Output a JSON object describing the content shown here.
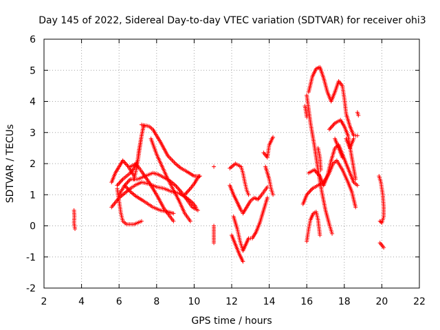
{
  "chart_data": {
    "type": "scatter",
    "title": "Day 145 of 2022, Sidereal Day-to-day VTEC variation (SDTVAR) for receiver ohi3",
    "xlabel": "GPS time / hours",
    "ylabel": "SDTVAR / TECUs",
    "xlim": [
      2,
      22
    ],
    "ylim": [
      -2,
      6
    ],
    "xticks": [
      "2",
      "4",
      "6",
      "8",
      "10",
      "12",
      "14",
      "16",
      "18",
      "20",
      "22"
    ],
    "yticks": [
      "-2",
      "-1",
      "0",
      "1",
      "2",
      "3",
      "4",
      "5",
      "6"
    ],
    "grid": true,
    "marker": "+",
    "series_color": "#ff0000",
    "tracks": [
      {
        "name": "t01",
        "points": [
          [
            3.6,
            0.5
          ],
          [
            3.62,
            0.3
          ],
          [
            3.6,
            0.1
          ],
          [
            3.65,
            -0.1
          ]
        ]
      },
      {
        "name": "t02",
        "points": [
          [
            5.6,
            1.4
          ],
          [
            5.8,
            1.7
          ],
          [
            6.0,
            1.9
          ],
          [
            6.2,
            2.1
          ],
          [
            6.5,
            1.9
          ],
          [
            6.8,
            1.6
          ]
        ]
      },
      {
        "name": "t03",
        "points": [
          [
            5.6,
            0.6
          ],
          [
            5.8,
            0.75
          ],
          [
            6.0,
            0.9
          ],
          [
            6.3,
            1.05
          ],
          [
            6.6,
            1.2
          ],
          [
            6.9,
            1.32
          ],
          [
            7.2,
            1.4
          ],
          [
            7.6,
            1.35
          ],
          [
            8.0,
            1.25
          ],
          [
            8.4,
            1.2
          ],
          [
            8.8,
            1.1
          ],
          [
            9.2,
            1.05
          ],
          [
            9.6,
            0.9
          ],
          [
            9.9,
            0.75
          ],
          [
            10.1,
            0.6
          ]
        ]
      },
      {
        "name": "t04",
        "points": [
          [
            5.9,
            1.2
          ],
          [
            6.0,
            0.8
          ],
          [
            6.1,
            0.4
          ],
          [
            6.2,
            0.15
          ],
          [
            6.4,
            0.05
          ],
          [
            6.8,
            0.05
          ],
          [
            7.2,
            0.15
          ]
        ]
      },
      {
        "name": "t05",
        "points": [
          [
            5.9,
            1.3
          ],
          [
            6.2,
            1.5
          ],
          [
            6.6,
            1.7
          ],
          [
            6.8,
            1.85
          ],
          [
            7.0,
            2.1
          ],
          [
            7.1,
            2.5
          ],
          [
            7.2,
            2.9
          ],
          [
            7.3,
            3.2
          ]
        ]
      },
      {
        "name": "t06",
        "points": [
          [
            6.8,
            1.5
          ],
          [
            6.95,
            1.9
          ],
          [
            7.05,
            2.4
          ],
          [
            7.2,
            2.9
          ],
          [
            7.3,
            3.2
          ]
        ]
      },
      {
        "name": "t07",
        "points": [
          [
            7.2,
            3.25
          ],
          [
            7.6,
            3.2
          ],
          [
            7.8,
            3.1
          ],
          [
            8.2,
            2.7
          ],
          [
            8.6,
            2.25
          ],
          [
            9.0,
            2.0
          ],
          [
            9.3,
            1.85
          ],
          [
            9.6,
            1.75
          ],
          [
            10.0,
            1.6
          ],
          [
            10.3,
            1.6
          ]
        ]
      },
      {
        "name": "t08",
        "points": [
          [
            6.0,
            1.0
          ],
          [
            6.3,
            1.3
          ],
          [
            6.6,
            1.5
          ],
          [
            7.0,
            1.5
          ],
          [
            7.4,
            1.6
          ],
          [
            7.8,
            1.7
          ],
          [
            8.1,
            1.65
          ],
          [
            8.4,
            1.55
          ],
          [
            8.7,
            1.45
          ],
          [
            9.0,
            1.3
          ],
          [
            9.3,
            1.1
          ],
          [
            9.6,
            0.85
          ],
          [
            9.9,
            0.6
          ],
          [
            10.2,
            0.5
          ]
        ]
      },
      {
        "name": "t09",
        "points": [
          [
            6.6,
            1.9
          ],
          [
            6.9,
            2.0
          ],
          [
            7.2,
            1.75
          ],
          [
            7.6,
            1.4
          ],
          [
            8.0,
            1.0
          ],
          [
            8.4,
            0.55
          ],
          [
            8.9,
            0.15
          ]
        ]
      },
      {
        "name": "t10",
        "points": [
          [
            6.3,
            1.3
          ],
          [
            6.6,
            1.1
          ],
          [
            6.9,
            0.95
          ],
          [
            7.3,
            0.8
          ],
          [
            7.8,
            0.6
          ],
          [
            8.2,
            0.5
          ],
          [
            8.6,
            0.45
          ],
          [
            8.9,
            0.4
          ]
        ]
      },
      {
        "name": "t11",
        "points": [
          [
            7.7,
            2.8
          ],
          [
            8.0,
            2.3
          ],
          [
            8.3,
            1.9
          ],
          [
            8.6,
            1.5
          ],
          [
            8.9,
            1.15
          ],
          [
            9.2,
            0.8
          ],
          [
            9.5,
            0.4
          ],
          [
            9.8,
            0.15
          ]
        ]
      },
      {
        "name": "t12",
        "points": [
          [
            9.5,
            1.0
          ],
          [
            9.8,
            1.2
          ],
          [
            10.0,
            1.35
          ],
          [
            10.2,
            1.55
          ],
          [
            10.3,
            1.6
          ]
        ]
      },
      {
        "name": "t13",
        "points": [
          [
            11.05,
            1.9
          ]
        ]
      },
      {
        "name": "t14",
        "points": [
          [
            11.05,
            0.0
          ],
          [
            11.05,
            -0.55
          ]
        ]
      },
      {
        "name": "t15",
        "points": [
          [
            11.9,
            1.85
          ],
          [
            12.2,
            2.0
          ],
          [
            12.5,
            1.9
          ],
          [
            12.6,
            1.7
          ],
          [
            12.7,
            1.4
          ],
          [
            12.8,
            1.15
          ],
          [
            12.9,
            1.0
          ]
        ]
      },
      {
        "name": "t16",
        "points": [
          [
            11.9,
            1.3
          ],
          [
            12.1,
            1.0
          ],
          [
            12.3,
            0.75
          ],
          [
            12.5,
            0.5
          ],
          [
            12.6,
            0.4
          ],
          [
            12.8,
            0.6
          ],
          [
            13.0,
            0.8
          ],
          [
            13.2,
            0.9
          ],
          [
            13.4,
            0.85
          ],
          [
            13.6,
            1.0
          ],
          [
            13.9,
            1.25
          ]
        ]
      },
      {
        "name": "t17",
        "points": [
          [
            12.1,
            0.3
          ],
          [
            12.3,
            -0.1
          ],
          [
            12.45,
            -0.5
          ],
          [
            12.6,
            -0.8
          ],
          [
            12.75,
            -0.6
          ],
          [
            12.9,
            -0.4
          ],
          [
            13.1,
            -0.4
          ],
          [
            13.3,
            -0.2
          ],
          [
            13.5,
            0.1
          ],
          [
            13.7,
            0.5
          ],
          [
            13.9,
            0.9
          ]
        ]
      },
      {
        "name": "t18",
        "points": [
          [
            12.0,
            -0.3
          ],
          [
            12.2,
            -0.6
          ],
          [
            12.4,
            -0.9
          ],
          [
            12.6,
            -1.15
          ]
        ]
      },
      {
        "name": "t19",
        "points": [
          [
            13.7,
            2.35
          ],
          [
            13.9,
            2.2
          ],
          [
            14.0,
            2.6
          ],
          [
            14.2,
            2.85
          ]
        ]
      },
      {
        "name": "t20",
        "points": [
          [
            13.8,
            1.9
          ],
          [
            14.0,
            1.5
          ],
          [
            14.1,
            1.2
          ],
          [
            14.2,
            1.0
          ]
        ]
      },
      {
        "name": "t21",
        "points": [
          [
            15.9,
            3.85
          ],
          [
            15.95,
            3.7
          ],
          [
            16.0,
            3.5
          ]
        ]
      },
      {
        "name": "t22",
        "points": [
          [
            16.1,
            4.3
          ],
          [
            16.3,
            4.8
          ],
          [
            16.5,
            5.05
          ],
          [
            16.7,
            5.1
          ],
          [
            16.9,
            4.75
          ],
          [
            17.1,
            4.3
          ],
          [
            17.3,
            4.0
          ],
          [
            17.5,
            4.3
          ],
          [
            17.7,
            4.65
          ],
          [
            17.9,
            4.5
          ],
          [
            18.0,
            4.1
          ],
          [
            18.1,
            3.6
          ],
          [
            18.3,
            3.2
          ],
          [
            18.5,
            2.9
          ],
          [
            18.7,
            2.9
          ]
        ]
      },
      {
        "name": "t23",
        "points": [
          [
            16.0,
            4.2
          ],
          [
            16.2,
            3.3
          ],
          [
            16.4,
            2.6
          ],
          [
            16.6,
            1.8
          ],
          [
            16.8,
            1.1
          ],
          [
            17.0,
            0.5
          ],
          [
            17.2,
            0.05
          ],
          [
            17.35,
            -0.25
          ]
        ]
      },
      {
        "name": "t24",
        "points": [
          [
            15.8,
            0.7
          ],
          [
            16.0,
            1.0
          ],
          [
            16.3,
            1.2
          ],
          [
            16.6,
            1.3
          ],
          [
            16.9,
            1.4
          ],
          [
            17.2,
            1.7
          ],
          [
            17.4,
            2.0
          ],
          [
            17.6,
            2.1
          ],
          [
            17.9,
            1.8
          ],
          [
            18.2,
            1.4
          ],
          [
            18.4,
            1.1
          ],
          [
            18.6,
            0.6
          ]
        ]
      },
      {
        "name": "t25",
        "points": [
          [
            16.1,
            1.7
          ],
          [
            16.4,
            1.8
          ],
          [
            16.7,
            1.6
          ],
          [
            16.9,
            1.3
          ],
          [
            17.1,
            1.6
          ],
          [
            17.3,
            2.1
          ],
          [
            17.5,
            2.5
          ],
          [
            17.7,
            2.6
          ],
          [
            17.9,
            2.3
          ],
          [
            18.1,
            2.0
          ],
          [
            18.3,
            1.7
          ],
          [
            18.5,
            1.4
          ],
          [
            18.7,
            1.3
          ]
        ]
      },
      {
        "name": "t26",
        "points": [
          [
            16.0,
            -0.5
          ],
          [
            16.1,
            -0.1
          ],
          [
            16.2,
            0.2
          ],
          [
            16.35,
            0.4
          ],
          [
            16.5,
            0.45
          ],
          [
            16.6,
            0.2
          ],
          [
            16.7,
            -0.3
          ]
        ]
      },
      {
        "name": "t27",
        "points": [
          [
            16.6,
            2.5
          ],
          [
            16.7,
            2.2
          ],
          [
            16.75,
            1.8
          ]
        ]
      },
      {
        "name": "t28",
        "points": [
          [
            17.2,
            3.1
          ],
          [
            17.5,
            3.3
          ],
          [
            17.8,
            3.4
          ],
          [
            18.0,
            3.2
          ],
          [
            18.2,
            2.9
          ],
          [
            18.4,
            2.2
          ],
          [
            18.6,
            1.5
          ]
        ]
      },
      {
        "name": "t29",
        "points": [
          [
            17.5,
            2.8
          ],
          [
            17.7,
            2.5
          ],
          [
            17.9,
            2.2
          ]
        ]
      },
      {
        "name": "t30",
        "points": [
          [
            18.1,
            2.8
          ],
          [
            18.3,
            2.5
          ],
          [
            18.5,
            2.8
          ]
        ]
      },
      {
        "name": "t31",
        "points": [
          [
            18.7,
            3.65
          ],
          [
            18.75,
            3.55
          ]
        ]
      },
      {
        "name": "t32",
        "points": [
          [
            19.85,
            1.6
          ],
          [
            19.95,
            1.4
          ],
          [
            20.05,
            1.0
          ],
          [
            20.1,
            0.6
          ],
          [
            20.1,
            0.3
          ],
          [
            20.0,
            0.1
          ],
          [
            19.9,
            0.15
          ]
        ]
      },
      {
        "name": "t33",
        "points": [
          [
            19.9,
            -0.55
          ],
          [
            20.0,
            -0.62
          ],
          [
            20.1,
            -0.7
          ]
        ]
      }
    ]
  }
}
